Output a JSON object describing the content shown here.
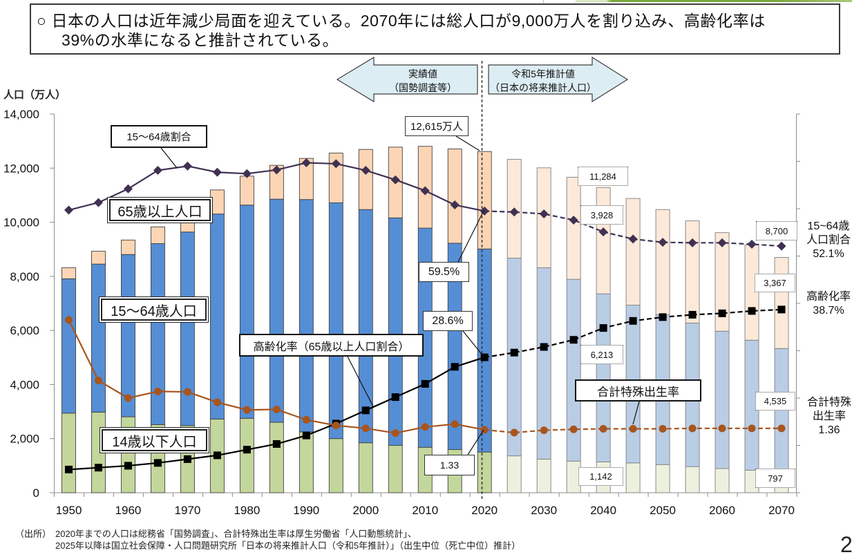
{
  "header": {
    "title_line1": "○ 日本の人口は近年減少局面を迎えている。2070年には総人口が9,000万人を割り込み、高齢化率は",
    "title_line2": "39%の水準になると推計されている。"
  },
  "chart_data": {
    "type": "bar",
    "stacked": true,
    "title": "",
    "xlabel": "",
    "ylabel": "人口（万人）",
    "ylim": [
      0,
      14000
    ],
    "ytick_values": [
      0,
      2000,
      4000,
      6000,
      8000,
      10000,
      12000,
      14000
    ],
    "yticks": [
      "0",
      "2,000",
      "4,000",
      "6,000",
      "8,000",
      "10,000",
      "12,000",
      "14,000"
    ],
    "y2lim_percent": [
      0,
      80
    ],
    "y2lim_tfr": [
      0,
      8
    ],
    "y2_tick_step_percent": 10,
    "grid": false,
    "legend": "none (inline callout labels)",
    "projection_start": 2025,
    "categories": [
      1950,
      1955,
      1960,
      1965,
      1970,
      1975,
      1980,
      1985,
      1990,
      1995,
      2000,
      2005,
      2010,
      2015,
      2020,
      2025,
      2030,
      2035,
      2040,
      2045,
      2050,
      2055,
      2060,
      2065,
      2070
    ],
    "xticks": [
      "1950",
      "1960",
      "1970",
      "1980",
      "1990",
      "2000",
      "2010",
      "2020",
      "2030",
      "2040",
      "2050",
      "2060",
      "2070"
    ],
    "totals": [
      8320,
      8928,
      9342,
      9828,
      10372,
      11194,
      11706,
      12105,
      12361,
      12557,
      12693,
      12777,
      12806,
      12709,
      12615,
      12326,
      12012,
      11664,
      11284,
      10880,
      10469,
      10051,
      9615,
      9159,
      8700
    ],
    "series": [
      {
        "key": "child",
        "name": "14歳以下人口",
        "type": "bar",
        "axis": "left",
        "unit": "万人",
        "color": "#c3d69b",
        "projection_color": "#ebf1de",
        "values": [
          2943,
          2980,
          2807,
          2517,
          2482,
          2723,
          2751,
          2603,
          2249,
          2001,
          1847,
          1752,
          1680,
          1595,
          1503,
          1363,
          1240,
          1169,
          1142,
          1103,
          1041,
          966,
          893,
          831,
          797
        ]
      },
      {
        "key": "working",
        "name": "15～64歳人口",
        "type": "bar",
        "axis": "left",
        "unit": "万人",
        "color": "#558ed5",
        "projection_color": "#b9cde5",
        "values": [
          4966,
          5473,
          6000,
          6693,
          7157,
          7581,
          7883,
          8251,
          8590,
          8716,
          8622,
          8409,
          8103,
          7629,
          7509,
          7310,
          7076,
          6722,
          6213,
          5832,
          5540,
          5307,
          5078,
          4809,
          4535
        ]
      },
      {
        "key": "elderly",
        "name": "65歳以上人口",
        "type": "bar",
        "axis": "left",
        "unit": "万人",
        "color": "#fcd5b5",
        "projection_color": "#fde9d9",
        "values": [
          411,
          475,
          535,
          618,
          733,
          887,
          1065,
          1247,
          1493,
          1828,
          2201,
          2567,
          2925,
          3387,
          3603,
          3653,
          3696,
          3773,
          3928,
          3945,
          3888,
          3778,
          3644,
          3519,
          3367
        ]
      },
      {
        "key": "working_ratio",
        "name": "15～64歳割合",
        "type": "line",
        "axis": "right_percent",
        "unit": "%",
        "color": "#403152",
        "marker": "diamond",
        "values": [
          59.7,
          61.3,
          64.2,
          68.1,
          69.0,
          67.7,
          67.4,
          68.2,
          69.7,
          69.5,
          68.1,
          66.1,
          63.8,
          60.8,
          59.5,
          59.3,
          58.9,
          57.6,
          55.1,
          53.6,
          52.9,
          52.8,
          52.8,
          52.5,
          52.1
        ]
      },
      {
        "key": "aging_rate",
        "name": "高齢化率（65歳以上人口割合）",
        "type": "line",
        "axis": "right_percent",
        "unit": "%",
        "color": "#000000",
        "marker": "square",
        "values": [
          4.9,
          5.3,
          5.7,
          6.3,
          7.1,
          7.9,
          9.1,
          10.3,
          12.1,
          14.6,
          17.4,
          20.2,
          23.0,
          26.6,
          28.6,
          29.6,
          30.8,
          32.3,
          34.8,
          36.3,
          37.1,
          37.6,
          37.9,
          38.4,
          38.7
        ]
      },
      {
        "key": "tfr",
        "name": "合計特殊出生率",
        "type": "line",
        "axis": "right_tfr",
        "unit": "",
        "color": "#a8551e",
        "marker": "circle",
        "values": [
          3.65,
          2.37,
          2.0,
          2.14,
          2.13,
          1.91,
          1.75,
          1.76,
          1.54,
          1.42,
          1.36,
          1.26,
          1.39,
          1.45,
          1.33,
          1.27,
          1.32,
          1.34,
          1.35,
          1.35,
          1.35,
          1.36,
          1.36,
          1.36,
          1.36
        ]
      }
    ],
    "series_labels": {
      "working_ratio": "15～64歳割合",
      "elderly_pop": "65歳以上人口",
      "working_pop": "15～64歳人口",
      "child_pop": "14歳以下人口",
      "aging_rate": "高齢化率（65歳以上人口割合）",
      "tfr": "合計特殊出生率"
    },
    "period_arrows": {
      "actual": {
        "line1": "実績値",
        "line2": "（国勢調査等）",
        "direction": "left"
      },
      "projected": {
        "line1": "令和5年推計値",
        "line2": "（日本の将来推計人口）",
        "direction": "right"
      }
    },
    "annotations": {
      "total_2020": "12,615万人",
      "working_ratio_2020": "59.5%",
      "aging_rate_2020": "28.6%",
      "tfr_2020": "1.33",
      "total_2040": "11,284",
      "elderly_2040": "3,928",
      "working_2040": "6,213",
      "child_2040": "1,142",
      "total_2070": "8,700",
      "elderly_2070": "3,367",
      "working_2070": "4,535",
      "child_2070": "797"
    },
    "right_labels": {
      "working_ratio": [
        "15~64歳",
        "人口割合",
        "52.1%"
      ],
      "aging_rate": [
        "高齢化率",
        "38.7%"
      ],
      "tfr": [
        "合計特殊",
        "出生率",
        "1.36"
      ]
    }
  },
  "footnote": {
    "source_label": "（出所）",
    "line1": "2020年までの人口は総務省「国勢調査」、合計特殊出生率は厚生労働省「人口動態統計」、",
    "line2": "2025年以降は国立社会保障・人口問題研究所「日本の将来推計人口（令和5年推計）」（出生中位（死亡中位）推計）"
  },
  "page_number": "2"
}
